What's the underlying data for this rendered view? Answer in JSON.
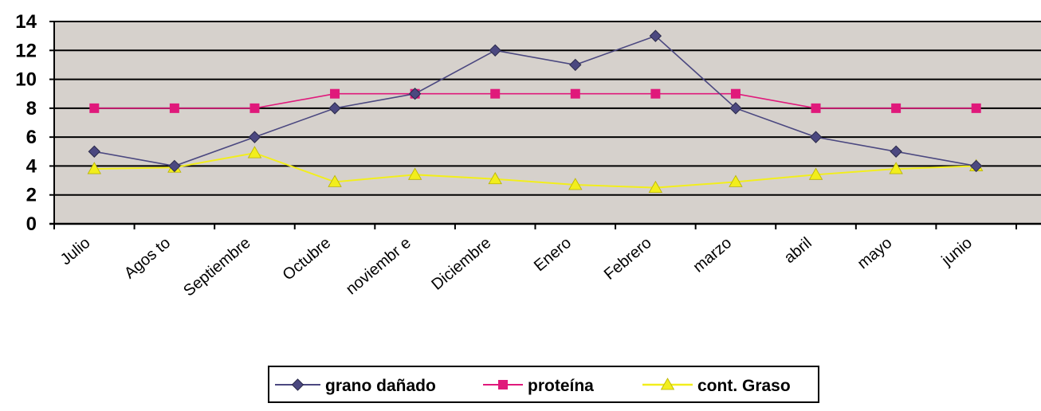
{
  "chart_data": {
    "type": "line",
    "categories": [
      "Julio",
      "Agos to",
      "Septiembre",
      "Octubre",
      "noviembr e",
      "Diciembre",
      "Enero",
      "Febrero",
      "marzo",
      "abril",
      "mayo",
      "junio"
    ],
    "series": [
      {
        "name": "grano dañado",
        "color": "#4b4880",
        "marker": "diamond",
        "values": [
          5,
          4,
          6,
          8,
          9,
          12,
          11,
          13,
          8,
          6,
          5,
          4
        ]
      },
      {
        "name": "proteína",
        "color": "#e0197b",
        "marker": "square",
        "values": [
          8,
          8,
          8,
          9,
          9,
          9,
          9,
          9,
          9,
          8,
          8,
          8
        ]
      },
      {
        "name": "cont. Graso",
        "color": "#f2ee1c",
        "marker": "triangle",
        "values": [
          3.8,
          3.9,
          4.9,
          2.9,
          3.4,
          3.1,
          2.7,
          2.5,
          2.9,
          3.4,
          3.8,
          4
        ]
      }
    ],
    "yticks": [
      "0",
      "2",
      "4",
      "6",
      "8",
      "10",
      "12",
      "14"
    ],
    "ylim": [
      0,
      14
    ],
    "grid": true,
    "plot_background": "#d6d1cc",
    "legend_position": "bottom"
  }
}
